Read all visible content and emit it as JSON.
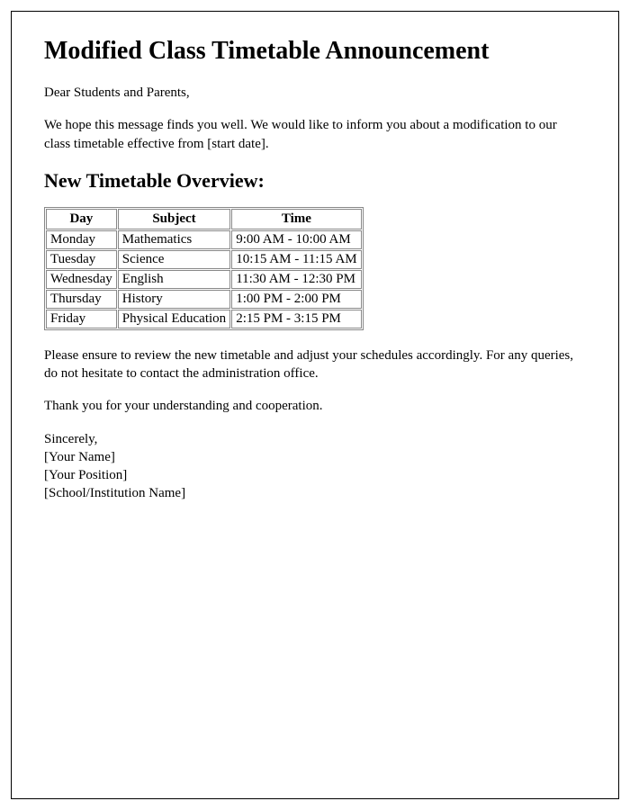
{
  "title": "Modified Class Timetable Announcement",
  "greeting": "Dear Students and Parents,",
  "intro": "We hope this message finds you well. We would like to inform you about a modification to our class timetable effective from [start date].",
  "subheading": "New Timetable Overview:",
  "table": {
    "columns": [
      "Day",
      "Subject",
      "Time"
    ],
    "rows": [
      [
        "Monday",
        "Mathematics",
        "9:00 AM - 10:00 AM"
      ],
      [
        "Tuesday",
        "Science",
        "10:15 AM - 11:15 AM"
      ],
      [
        "Wednesday",
        "English",
        "11:30 AM - 12:30 PM"
      ],
      [
        "Thursday",
        "History",
        "1:00 PM - 2:00 PM"
      ],
      [
        "Friday",
        "Physical Education",
        "2:15 PM - 3:15 PM"
      ]
    ]
  },
  "closing1": "Please ensure to review the new timetable and adjust your schedules accordingly. For any queries, do not hesitate to contact the administration office.",
  "closing2": "Thank you for your understanding and cooperation.",
  "signature": {
    "line1": "Sincerely,",
    "line2": "[Your Name]",
    "line3": "[Your Position]",
    "line4": "[School/Institution Name]"
  }
}
